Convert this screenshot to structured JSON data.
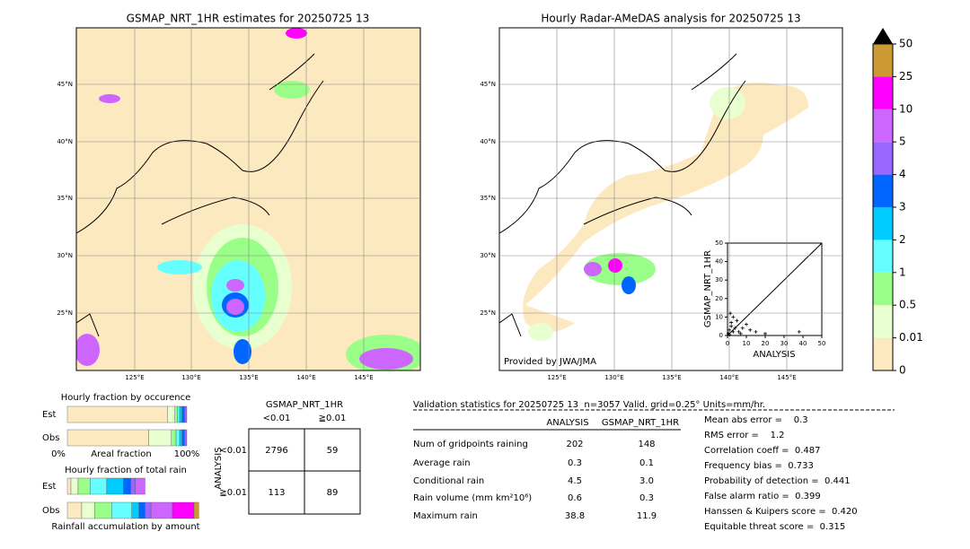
{
  "maps": [
    {
      "title": "GSMAP_NRT_1HR estimates for 20250725 13",
      "lat_labels": [
        "45°N",
        "40°N",
        "35°N",
        "30°N",
        "25°N"
      ],
      "lon_labels": [
        "125°E",
        "130°E",
        "135°E",
        "140°E",
        "145°E"
      ]
    },
    {
      "title": "Hourly Radar-AMeDAS analysis for 20250725 13",
      "lat_labels": [
        "45°N",
        "40°N",
        "35°N",
        "30°N",
        "25°N"
      ],
      "lon_labels": [
        "125°E",
        "130°E",
        "135°E",
        "140°E",
        "145°E"
      ],
      "credit": "Provided by JWA/JMA"
    }
  ],
  "colorbar": {
    "levels": [
      0,
      0.01,
      0.5,
      1,
      2,
      3,
      4,
      5,
      10,
      25,
      50
    ],
    "colors": [
      "#fde9c0",
      "#e8ffd0",
      "#99ff88",
      "#66ffff",
      "#00ccff",
      "#0066ff",
      "#9966ff",
      "#cc66ff",
      "#ff00ff",
      "#cc9933"
    ],
    "extend_color": "#000000"
  },
  "chart_data": {
    "type": "scatter",
    "xlabel": "ANALYSIS",
    "ylabel": "GSMAP_NRT_1HR",
    "xlim": [
      0,
      50
    ],
    "ylim": [
      0,
      50
    ],
    "xticks": [
      0,
      10,
      20,
      30,
      40,
      50
    ],
    "yticks": [
      0,
      10,
      20,
      30,
      40,
      50
    ],
    "x": [
      0.5,
      1,
      2,
      3,
      5,
      8,
      10,
      12,
      15,
      20,
      38,
      3,
      6,
      1,
      2,
      4,
      7,
      1.5
    ],
    "y": [
      1,
      3,
      5,
      2,
      8,
      4,
      6,
      3,
      2,
      1,
      2,
      10,
      2,
      0.5,
      7,
      4,
      1,
      12
    ],
    "color": "#000000"
  },
  "occurrence": {
    "title": "Hourly fraction by occurence",
    "rows": [
      "Est",
      "Obs"
    ],
    "axis_labels": [
      "0%",
      "Areal fraction",
      "100%"
    ],
    "segments": [
      [
        84,
        6,
        2,
        2,
        2,
        2,
        2
      ],
      [
        68,
        19,
        4,
        3,
        2,
        2,
        2
      ]
    ]
  },
  "amount": {
    "title": "Hourly fraction of total rain",
    "footer": "Rainfall accumulation by amount",
    "rows": [
      "Est",
      "Obs"
    ],
    "segments": [
      [
        3,
        6,
        10,
        14,
        14,
        6,
        4,
        8,
        0,
        0
      ],
      [
        12,
        11,
        14,
        17,
        6,
        5,
        5,
        18,
        18,
        4
      ]
    ]
  },
  "contingency": {
    "title": "GSMAP_NRT_1HR",
    "side_label": "ANALYSIS",
    "cols": [
      "<0.01",
      "≧0.01"
    ],
    "rows": [
      "<0.01",
      "≧0.01"
    ],
    "cells": [
      [
        2796,
        59
      ],
      [
        113,
        89
      ]
    ]
  },
  "validation": {
    "title": "Validation statistics for 20250725 13  n=3057 Valid. grid=0.25° Units=mm/hr.",
    "headers": [
      "ANALYSIS",
      "GSMAP_NRT_1HR"
    ],
    "rows": [
      {
        "label": "Num of gridpoints raining",
        "values": [
          202,
          148
        ]
      },
      {
        "label": "Average rain",
        "values": [
          0.3,
          0.1
        ]
      },
      {
        "label": "Conditional rain",
        "values": [
          4.5,
          3.0
        ],
        "value_labels": [
          "4.5",
          "3.0"
        ]
      },
      {
        "label": "Rain volume (mm km²10⁶)",
        "values": [
          0.6,
          0.3
        ]
      },
      {
        "label": "Maximum rain",
        "values": [
          38.8,
          11.9
        ]
      }
    ],
    "scores": [
      "Mean abs error =    0.3",
      "RMS error =    1.2",
      "Correlation coeff =  0.487",
      "Frequency bias =  0.733",
      "Probability of detection =  0.441",
      "False alarm ratio =  0.399",
      "Hanssen & Kuipers score =  0.420",
      "Equitable threat score =  0.315"
    ]
  }
}
